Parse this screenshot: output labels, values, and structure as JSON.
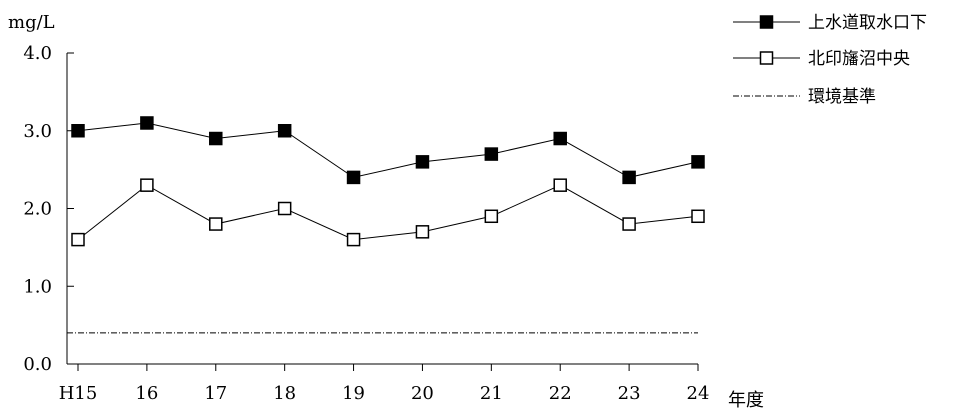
{
  "chart_data": {
    "type": "line",
    "ylabel": "mg/L",
    "xlabel": "年度",
    "categories": [
      "H15",
      "16",
      "17",
      "18",
      "19",
      "20",
      "21",
      "22",
      "23",
      "24"
    ],
    "ylim": [
      0.0,
      4.0
    ],
    "yticks": [
      "0.0",
      "1.0",
      "2.0",
      "3.0",
      "4.0"
    ],
    "grid": false,
    "legend_position": "top-right",
    "series": [
      {
        "name": "上水道取水口下",
        "marker": "filled-square",
        "color": "#000000",
        "values": [
          3.0,
          3.1,
          2.9,
          3.0,
          2.4,
          2.6,
          2.7,
          2.9,
          2.4,
          2.6
        ]
      },
      {
        "name": "北印旛沼中央",
        "marker": "open-square",
        "color": "#000000",
        "values": [
          1.6,
          2.3,
          1.8,
          2.0,
          1.6,
          1.7,
          1.9,
          2.3,
          1.8,
          1.9
        ]
      }
    ],
    "reference_line": {
      "name": "環境基準",
      "value": 0.4,
      "style": "dash-dot"
    }
  }
}
